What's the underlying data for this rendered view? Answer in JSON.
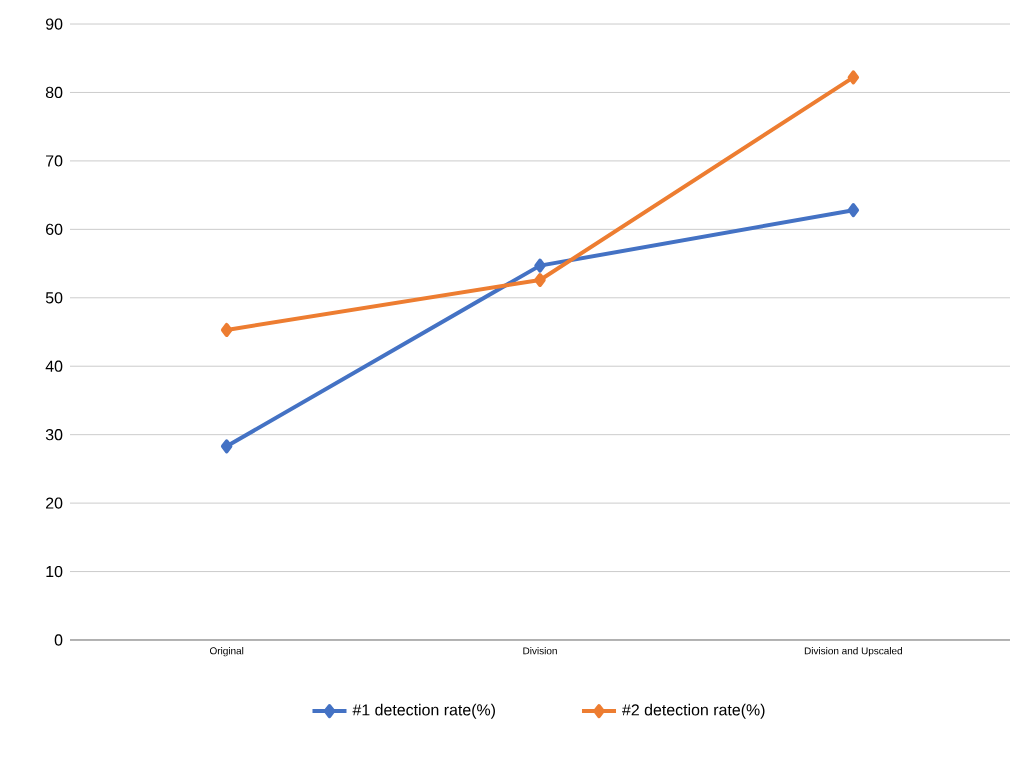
{
  "chart_data": {
    "type": "line",
    "categories": [
      "Original",
      "Division",
      "Division and Upscaled"
    ],
    "series": [
      {
        "name": "#1 detection rate(%)",
        "color": "#4472c4",
        "values": [
          28.3,
          54.7,
          62.8
        ]
      },
      {
        "name": "#2 detection rate(%)",
        "color": "#ed7d31",
        "values": [
          45.3,
          52.6,
          82.2
        ]
      }
    ],
    "ylim": [
      0,
      90
    ],
    "yticks": [
      0,
      10,
      20,
      30,
      40,
      50,
      60,
      70,
      80,
      90
    ],
    "grid": "y",
    "legend": "bottom",
    "marker": "diamond",
    "line_style": "solid"
  }
}
